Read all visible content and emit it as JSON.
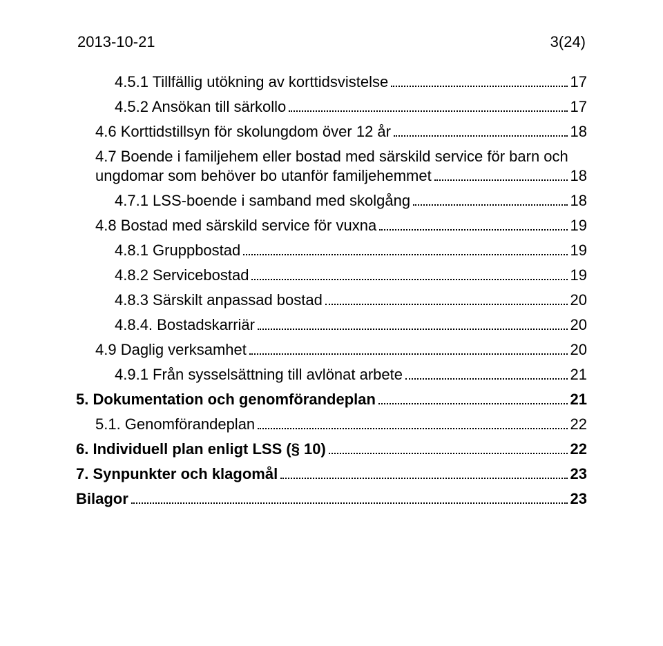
{
  "header": {
    "date": "2013-10-21",
    "pageinfo": "3(24)"
  },
  "toc": [
    {
      "label": "4.5.1 Tillfällig utökning av korttidsvistelse",
      "page": "17",
      "indent": 2,
      "bold": false
    },
    {
      "label": "4.5.2 Ansökan till särkollo",
      "page": "17",
      "indent": 2,
      "bold": false
    },
    {
      "label": "4.6 Korttidstillsyn för skolungdom över 12 år",
      "page": "18",
      "indent": 1,
      "bold": false
    },
    {
      "label": "4.7 Boende i familjehem eller bostad med särskild service för barn och ungdomar som behöver bo utanför familjehemmet",
      "page": "18",
      "indent": 1,
      "bold": false,
      "wrap": true
    },
    {
      "label": "4.7.1 LSS-boende i samband med skolgång",
      "page": "18",
      "indent": 2,
      "bold": false
    },
    {
      "label": "4.8 Bostad med särskild service för vuxna",
      "page": "19",
      "indent": 1,
      "bold": false
    },
    {
      "label": "4.8.1 Gruppbostad",
      "page": "19",
      "indent": 2,
      "bold": false
    },
    {
      "label": "4.8.2 Servicebostad",
      "page": "19",
      "indent": 2,
      "bold": false
    },
    {
      "label": "4.8.3 Särskilt anpassad bostad",
      "page": "20",
      "indent": 2,
      "bold": false
    },
    {
      "label": "4.8.4. Bostadskarriär",
      "page": "20",
      "indent": 2,
      "bold": false
    },
    {
      "label": "4.9 Daglig verksamhet",
      "page": "20",
      "indent": 1,
      "bold": false
    },
    {
      "label": "4.9.1 Från sysselsättning till avlönat arbete",
      "page": "21",
      "indent": 2,
      "bold": false
    },
    {
      "label": "5. Dokumentation och genomförandeplan",
      "page": "21",
      "indent": 0,
      "bold": true
    },
    {
      "label": "5.1. Genomförandeplan",
      "page": "22",
      "indent": 1,
      "bold": false
    },
    {
      "label": "6. Individuell plan enligt LSS (§ 10)",
      "page": "22",
      "indent": 0,
      "bold": true
    },
    {
      "label": "7. Synpunkter och klagomål",
      "page": "23",
      "indent": 0,
      "bold": true
    },
    {
      "label": "Bilagor",
      "page": "23",
      "indent": 0,
      "bold": true
    }
  ],
  "wrap_parts": {
    "3": {
      "line1": "4.7 Boende i familjehem eller bostad med särskild service för barn och",
      "line2": "ungdomar som behöver bo utanför familjehemmet"
    }
  }
}
